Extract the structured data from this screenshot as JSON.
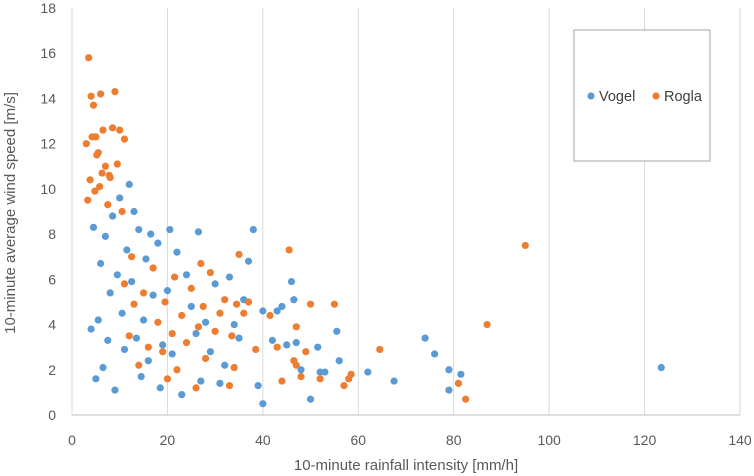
{
  "chart_data": {
    "type": "scatter",
    "title": "",
    "xlabel": "10-minute rainfall intensity [mm/h]",
    "ylabel": "10-minute average wind speed [m/s]",
    "xlim": [
      0,
      140
    ],
    "ylim": [
      0,
      18
    ],
    "x_ticks": [
      0,
      20,
      40,
      60,
      80,
      100,
      120,
      140
    ],
    "y_ticks": [
      0,
      2,
      4,
      6,
      8,
      10,
      12,
      14,
      16,
      18
    ],
    "grid": "vertical",
    "legend": "top-right",
    "series": [
      {
        "name": "Vogel",
        "color": "#5B9BD5",
        "points": [
          [
            123.5,
            2.1
          ],
          [
            81.5,
            1.8
          ],
          [
            79,
            2
          ],
          [
            79,
            1.1
          ],
          [
            76,
            2.7
          ],
          [
            74,
            3.4
          ],
          [
            67.5,
            1.5
          ],
          [
            62,
            1.9
          ],
          [
            56,
            2.4
          ],
          [
            55.5,
            3.7
          ],
          [
            53,
            1.9
          ],
          [
            52,
            1.9
          ],
          [
            51.5,
            3
          ],
          [
            50,
            0.7
          ],
          [
            48,
            2
          ],
          [
            47,
            3.2
          ],
          [
            46.5,
            5.1
          ],
          [
            46,
            5.9
          ],
          [
            45,
            3.1
          ],
          [
            44,
            4.8
          ],
          [
            43,
            4.6
          ],
          [
            42,
            3.3
          ],
          [
            40,
            4.6
          ],
          [
            40,
            0.5
          ],
          [
            39,
            1.3
          ],
          [
            38,
            8.2
          ],
          [
            37,
            6.8
          ],
          [
            36,
            5.1
          ],
          [
            35,
            3.4
          ],
          [
            34,
            4
          ],
          [
            33,
            6.1
          ],
          [
            32,
            2.2
          ],
          [
            31,
            1.4
          ],
          [
            30,
            5.8
          ],
          [
            29,
            2.8
          ],
          [
            28,
            4.1
          ],
          [
            27,
            1.5
          ],
          [
            26.5,
            8.1
          ],
          [
            26,
            3.6
          ],
          [
            25,
            4.8
          ],
          [
            24,
            6.2
          ],
          [
            23,
            0.9
          ],
          [
            22,
            7.2
          ],
          [
            21,
            2.7
          ],
          [
            20.5,
            8.2
          ],
          [
            20,
            5.5
          ],
          [
            19,
            3.1
          ],
          [
            18.5,
            1.2
          ],
          [
            18,
            7.6
          ],
          [
            17,
            5.3
          ],
          [
            16.5,
            8
          ],
          [
            16,
            2.4
          ],
          [
            15.5,
            6.9
          ],
          [
            15,
            4.2
          ],
          [
            14.5,
            1.7
          ],
          [
            14,
            8.2
          ],
          [
            13.5,
            3.4
          ],
          [
            13,
            9
          ],
          [
            12.5,
            5.9
          ],
          [
            12,
            10.2
          ],
          [
            11.5,
            7.3
          ],
          [
            11,
            2.9
          ],
          [
            10.5,
            4.5
          ],
          [
            10,
            9.6
          ],
          [
            9.5,
            6.2
          ],
          [
            9,
            1.1
          ],
          [
            8.5,
            8.8
          ],
          [
            8,
            5.4
          ],
          [
            7.5,
            3.3
          ],
          [
            7,
            7.9
          ],
          [
            6.5,
            2.1
          ],
          [
            6,
            6.7
          ],
          [
            5.5,
            4.2
          ],
          [
            5,
            1.6
          ],
          [
            4.5,
            8.3
          ],
          [
            4,
            3.8
          ]
        ]
      },
      {
        "name": "Rogla",
        "color": "#ED7D31",
        "points": [
          [
            95,
            7.5
          ],
          [
            87,
            4
          ],
          [
            82.5,
            0.7
          ],
          [
            81,
            1.4
          ],
          [
            64.5,
            2.9
          ],
          [
            58.5,
            1.8
          ],
          [
            58,
            1.6
          ],
          [
            57,
            1.3
          ],
          [
            55,
            4.9
          ],
          [
            52,
            1.6
          ],
          [
            50,
            4.9
          ],
          [
            49,
            2.8
          ],
          [
            48,
            1.7
          ],
          [
            47,
            2.2
          ],
          [
            47,
            3.9
          ],
          [
            46.5,
            2.4
          ],
          [
            45.5,
            7.3
          ],
          [
            44,
            1.5
          ],
          [
            43,
            3
          ],
          [
            41.5,
            4.4
          ],
          [
            38.5,
            2.9
          ],
          [
            37,
            5
          ],
          [
            36,
            4.5
          ],
          [
            35,
            7.1
          ],
          [
            34.5,
            4.9
          ],
          [
            34,
            2.1
          ],
          [
            33.5,
            3.5
          ],
          [
            33,
            1.3
          ],
          [
            32,
            5.1
          ],
          [
            31,
            4.5
          ],
          [
            30,
            3.7
          ],
          [
            29,
            6.3
          ],
          [
            28,
            2.5
          ],
          [
            27.5,
            4.8
          ],
          [
            27,
            6.7
          ],
          [
            26.5,
            3.9
          ],
          [
            26,
            1.2
          ],
          [
            25,
            5.6
          ],
          [
            24,
            3.2
          ],
          [
            23,
            4.4
          ],
          [
            22,
            2
          ],
          [
            21.5,
            6.1
          ],
          [
            21,
            3.6
          ],
          [
            20,
            1.6
          ],
          [
            19.5,
            5
          ],
          [
            19,
            2.8
          ],
          [
            18,
            4.1
          ],
          [
            17,
            6.5
          ],
          [
            16,
            3
          ],
          [
            15,
            5.4
          ],
          [
            14,
            2.2
          ],
          [
            13,
            4.9
          ],
          [
            12.5,
            7
          ],
          [
            12,
            3.5
          ],
          [
            11,
            12.2
          ],
          [
            11,
            5.8
          ],
          [
            10.5,
            9
          ],
          [
            10,
            12.6
          ],
          [
            9.5,
            11.1
          ],
          [
            9,
            14.3
          ],
          [
            8.5,
            12.7
          ],
          [
            8,
            10.5
          ],
          [
            7.5,
            9.3
          ],
          [
            7,
            11
          ],
          [
            6.5,
            12.6
          ],
          [
            6,
            14.2
          ],
          [
            5.5,
            11.6
          ],
          [
            5,
            12.3
          ],
          [
            4.5,
            13.7
          ],
          [
            4,
            14.1
          ],
          [
            3.5,
            15.8
          ],
          [
            3,
            12
          ],
          [
            4.2,
            12.3
          ],
          [
            5.2,
            11.5
          ],
          [
            6.3,
            10.7
          ],
          [
            3.8,
            10.4
          ],
          [
            4.8,
            9.9
          ],
          [
            3.3,
            9.5
          ],
          [
            5.8,
            10.1
          ],
          [
            7.8,
            10.6
          ]
        ]
      }
    ]
  }
}
